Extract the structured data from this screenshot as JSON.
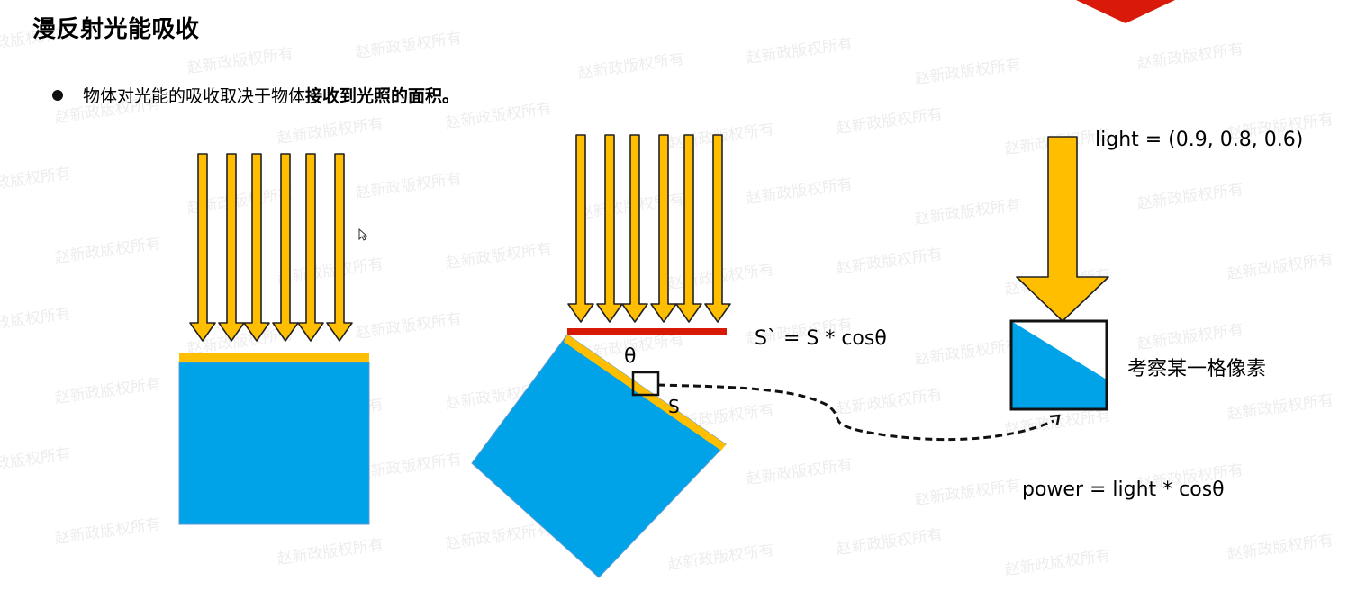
{
  "slide": {
    "title": "漫反射光能吸收",
    "bullet_plain": "物体对光能的吸收取决于物体",
    "bullet_bold": "接收到光照的面积。"
  },
  "diagram": {
    "area_formula": "S` = S * cosθ",
    "theta_label": "θ",
    "s_label": "S",
    "light_label": "light = (0.9, 0.8, 0.6)",
    "pixel_label": "考察某一格像素",
    "power_formula": "power = light * cosθ"
  },
  "colors": {
    "arrow_fill": "#FFBE00",
    "surface_blue": "#00A2E8",
    "surface_edge": "#FFBE00",
    "projection_red": "#D71A05",
    "corner_red": "#D91A0A"
  },
  "watermark": {
    "text": "赵新政版权所有"
  }
}
